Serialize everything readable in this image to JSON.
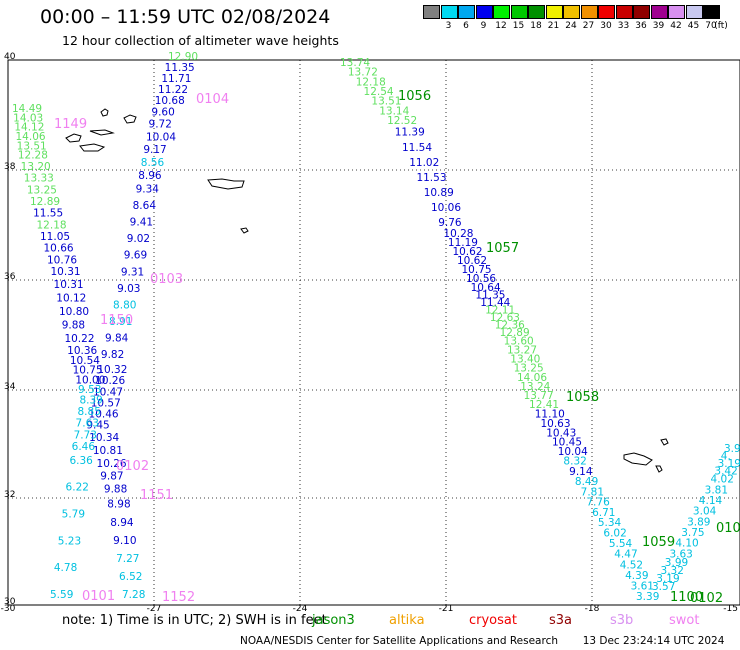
{
  "header": {
    "title": "00:00 – 11:59 UTC 02/08/2024",
    "subtitle": "12 hour collection of altimeter wave heights"
  },
  "legend": {
    "unit": "(ft)",
    "bins": [
      {
        "label": "",
        "color": "#808080"
      },
      {
        "label": "3",
        "color": "#00d8f0"
      },
      {
        "label": "6",
        "color": "#00a8f0"
      },
      {
        "label": "9",
        "color": "#0000f0"
      },
      {
        "label": "12",
        "color": "#00f000"
      },
      {
        "label": "15",
        "color": "#00c800"
      },
      {
        "label": "18",
        "color": "#009000"
      },
      {
        "label": "21",
        "color": "#f0f000"
      },
      {
        "label": "24",
        "color": "#f0c000"
      },
      {
        "label": "27",
        "color": "#f09000"
      },
      {
        "label": "30",
        "color": "#f00000"
      },
      {
        "label": "33",
        "color": "#c80000"
      },
      {
        "label": "36",
        "color": "#900000"
      },
      {
        "label": "39",
        "color": "#a00090"
      },
      {
        "label": "42",
        "color": "#d890f0"
      },
      {
        "label": "45",
        "color": "#c8c8f0"
      },
      {
        "label": "70",
        "color": "#000000"
      }
    ]
  },
  "axes": {
    "lon_ticks": [
      "-30",
      "-27",
      "-24",
      "-21",
      "-18",
      "-15"
    ],
    "lat_ticks": [
      "40",
      "38",
      "36",
      "34",
      "32",
      "30"
    ]
  },
  "colors": {
    "blue": "#0000cc",
    "cyan": "#00c0e0",
    "green": "#60e060",
    "darkgreen": "#009000",
    "pink": "#f080f0"
  },
  "passes": [
    {
      "label": "0104",
      "color": "pink"
    },
    {
      "label": "1149",
      "color": "pink"
    },
    {
      "label": "1056",
      "color": "darkgreen"
    },
    {
      "label": "1057",
      "color": "darkgreen"
    },
    {
      "label": "0103",
      "color": "pink"
    },
    {
      "label": "1150",
      "color": "pink"
    },
    {
      "label": "1058",
      "color": "darkgreen"
    },
    {
      "label": "0102",
      "color": "pink"
    },
    {
      "label": "1151",
      "color": "pink"
    },
    {
      "label": "1059",
      "color": "darkgreen"
    },
    {
      "label": "0101",
      "color": "pink"
    },
    {
      "label": "1152",
      "color": "pink"
    },
    {
      "label": "1100",
      "color": "darkgreen"
    },
    {
      "label": "0102",
      "color": "darkgreen"
    },
    {
      "label": "010",
      "color": "darkgreen"
    }
  ],
  "track_a": {
    "values": [
      "12.90",
      "11.35",
      "11.71",
      "11.22",
      "10.68",
      "9.60",
      "9.72",
      "10.04",
      "9.17",
      "8.56",
      "8.96",
      "9.34",
      "8.64",
      "9.41",
      "9.02",
      "9.69",
      "9.31",
      "9.03",
      "8.80",
      "8.91",
      "9.84",
      "9.82",
      "10.32",
      "10.26",
      "10.47",
      "10.57",
      "10.46",
      "9.45",
      "10.34",
      "10.81",
      "10.26",
      "9.87",
      "9.88",
      "8.98",
      "8.94",
      "9.10",
      "7.27",
      "6.52",
      "7.28"
    ],
    "colors": [
      "green",
      "blue",
      "blue",
      "blue",
      "blue",
      "blue",
      "blue",
      "blue",
      "blue",
      "cyan",
      "blue",
      "blue",
      "blue",
      "blue",
      "blue",
      "blue",
      "blue",
      "blue",
      "cyan",
      "cyan",
      "blue",
      "blue",
      "blue",
      "blue",
      "blue",
      "blue",
      "blue",
      "blue",
      "blue",
      "blue",
      "blue",
      "blue",
      "blue",
      "blue",
      "blue",
      "blue",
      "cyan",
      "cyan",
      "cyan"
    ]
  },
  "track_b": {
    "values": [
      "14.49",
      "14.03",
      "14.12",
      "14.06",
      "13.51",
      "12.28",
      "13.20",
      "13.33",
      "13.25",
      "12.89",
      "11.55",
      "12.18",
      "11.05",
      "10.66",
      "10.76",
      "10.31",
      "10.31",
      "10.12",
      "10.80",
      "9.88",
      "10.22",
      "10.36",
      "10.54",
      "10.75",
      "10.00",
      "9.53",
      "8.39",
      "8.85",
      "7.63",
      "7.73",
      "6.46",
      "6.36",
      "6.22",
      "5.79",
      "5.23",
      "4.78",
      "5.59"
    ],
    "colors": [
      "green",
      "green",
      "green",
      "green",
      "green",
      "green",
      "green",
      "green",
      "green",
      "green",
      "blue",
      "green",
      "blue",
      "blue",
      "blue",
      "blue",
      "blue",
      "blue",
      "blue",
      "blue",
      "blue",
      "blue",
      "blue",
      "blue",
      "blue",
      "cyan",
      "cyan",
      "cyan",
      "cyan",
      "cyan",
      "cyan",
      "cyan",
      "cyan",
      "cyan",
      "cyan",
      "cyan",
      "cyan"
    ]
  },
  "track_c": {
    "values": [
      "13.74",
      "13.72",
      "12.18",
      "12.54",
      "13.51",
      "13.14",
      "12.52",
      "11.39",
      "11.54",
      "11.02",
      "11.53",
      "10.89",
      "10.06",
      "9.76",
      "10.28",
      "11.19",
      "10.62",
      "10.62",
      "10.75",
      "10.56",
      "10.64",
      "11.35",
      "11.44",
      "12.11",
      "12.63",
      "12.36",
      "12.89",
      "13.60",
      "13.27",
      "13.40",
      "13.25",
      "14.06",
      "13.24",
      "13.77",
      "12.41",
      "11.10",
      "10.63",
      "10.43",
      "10.45",
      "10.04",
      "8.32",
      "9.14",
      "8.49",
      "7.81",
      "7.76",
      "6.71",
      "5.34",
      "6.02",
      "5.54",
      "4.47",
      "4.52",
      "4.39",
      "3.61",
      "3.39"
    ],
    "colors": [
      "green",
      "green",
      "green",
      "green",
      "green",
      "green",
      "green",
      "blue",
      "blue",
      "blue",
      "blue",
      "blue",
      "blue",
      "blue",
      "blue",
      "blue",
      "blue",
      "blue",
      "blue",
      "blue",
      "blue",
      "blue",
      "blue",
      "green",
      "green",
      "green",
      "green",
      "green",
      "green",
      "green",
      "green",
      "green",
      "green",
      "green",
      "green",
      "blue",
      "blue",
      "blue",
      "blue",
      "blue",
      "cyan",
      "blue",
      "cyan",
      "cyan",
      "cyan",
      "cyan",
      "cyan",
      "cyan",
      "cyan",
      "cyan",
      "cyan",
      "cyan",
      "cyan",
      "cyan"
    ]
  },
  "track_d": {
    "values": [
      "3.9",
      "4.",
      "3.19",
      "3.42",
      "4.02",
      "3.81",
      "4.14",
      "3.04",
      "3.89",
      "3.75",
      "4.10",
      "3.63",
      "3.99",
      "3.32",
      "3.19",
      "3.57"
    ],
    "colors": [
      "cyan",
      "cyan",
      "cyan",
      "cyan",
      "cyan",
      "cyan",
      "cyan",
      "cyan",
      "cyan",
      "cyan",
      "cyan",
      "cyan",
      "cyan",
      "cyan",
      "cyan",
      "cyan"
    ]
  },
  "footer": {
    "note": "note:  1) Time is in UTC;  2) SWH is in feet",
    "satellites": [
      {
        "name": "jason3",
        "color": "#009000"
      },
      {
        "name": "altika",
        "color": "#f0a000"
      },
      {
        "name": "cryosat",
        "color": "#f00000"
      },
      {
        "name": "s3a",
        "color": "#900000"
      },
      {
        "name": "s3b",
        "color": "#d890f0"
      },
      {
        "name": "swot",
        "color": "#f080f0"
      }
    ],
    "credit": "NOAA/NESDIS Center for Satellite Applications and Research",
    "timestamp": "13 Dec 23:24:14 UTC 2024"
  }
}
